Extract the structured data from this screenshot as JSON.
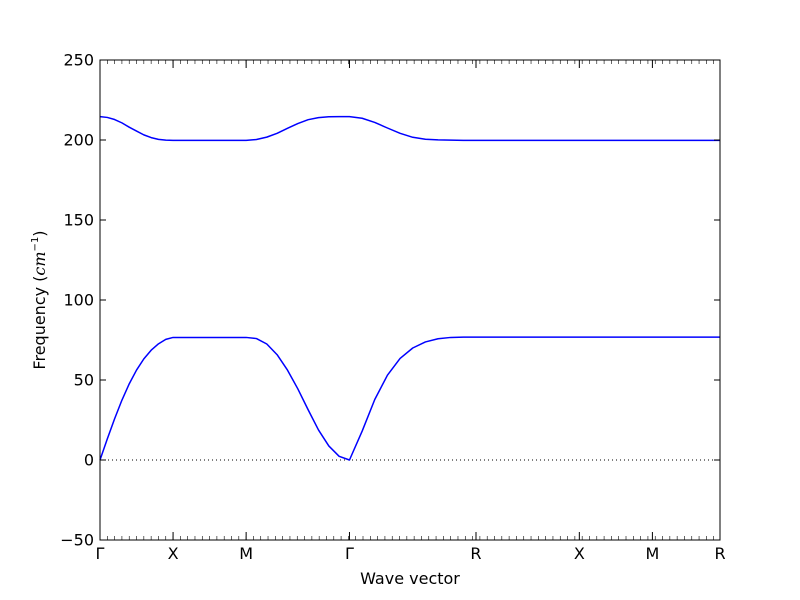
{
  "chart_data": {
    "type": "line",
    "title": "",
    "xlabel": "Wave vector",
    "ylabel_text": "Frequency (",
    "ylabel_unit_base": "cm",
    "ylabel_unit_exp": "−1",
    "ylabel_close": ")",
    "ylim": [
      -50,
      250
    ],
    "yticks": [
      -50,
      0,
      50,
      100,
      150,
      200,
      250
    ],
    "ytick_labels": [
      "−50",
      "0",
      "50",
      "100",
      "150",
      "200",
      "250"
    ],
    "xlim": [
      0,
      6.0
    ],
    "xticks": [
      {
        "pos": 0.0,
        "label": "Γ"
      },
      {
        "pos": 0.7071,
        "label": "X"
      },
      {
        "pos": 1.4142,
        "label": "M"
      },
      {
        "pos": 2.4142,
        "label": "Γ"
      },
      {
        "pos": 3.6387,
        "label": "R"
      },
      {
        "pos": 4.6387,
        "label": "X"
      },
      {
        "pos": 5.3458,
        "label": "M"
      },
      {
        "pos": 6.0,
        "label": "R"
      }
    ],
    "minor_tick_step": 0.0707,
    "zero_line": {
      "y": 0,
      "style": "dotted"
    },
    "series": [
      {
        "color": "#0000ff",
        "x": [
          0.0,
          0.0707,
          0.1414,
          0.2121,
          0.2828,
          0.3536,
          0.4243,
          0.495,
          0.5657,
          0.6364,
          0.7071,
          0.9428,
          1.1785,
          1.4142,
          1.5142,
          1.6142,
          1.7142,
          1.8142,
          1.9142,
          2.0142,
          2.1142,
          2.2142,
          2.3142,
          2.4142,
          2.5367,
          2.6591,
          2.7816,
          2.904,
          3.0265,
          3.1489,
          3.2714,
          3.3938,
          3.5163,
          3.6387,
          4.6387,
          5.3458,
          6.0
        ],
        "y": [
          0,
          13.2,
          25.8,
          37.4,
          47.6,
          56.2,
          63.2,
          68.6,
          72.6,
          75.4,
          76.6,
          76.6,
          76.6,
          76.6,
          75.9,
          72.5,
          65.8,
          56.2,
          44.5,
          31.4,
          18.8,
          8.8,
          2.3,
          0,
          18.0,
          37.8,
          53.0,
          63.5,
          70.0,
          73.8,
          75.8,
          76.6,
          76.8,
          76.8,
          76.8,
          76.8,
          76.8
        ]
      },
      {
        "color": "#0000ff",
        "x": [
          0.0,
          0.0707,
          0.1414,
          0.2121,
          0.2828,
          0.3536,
          0.4243,
          0.495,
          0.5657,
          0.6364,
          0.7071,
          0.9428,
          1.1785,
          1.4142,
          1.5142,
          1.6142,
          1.7142,
          1.8142,
          1.9142,
          2.0142,
          2.1142,
          2.2142,
          2.3142,
          2.4142,
          2.5367,
          2.6591,
          2.7816,
          2.904,
          3.0265,
          3.1489,
          3.2714,
          3.3938,
          3.5163,
          3.6387,
          4.6387,
          5.3458,
          6.0
        ],
        "y": [
          214.6,
          214.1,
          212.8,
          210.7,
          208.0,
          205.6,
          203.2,
          201.5,
          200.4,
          199.9,
          199.8,
          199.8,
          199.8,
          199.8,
          200.3,
          201.8,
          204.2,
          207.3,
          210.3,
          212.7,
          214.0,
          214.5,
          214.6,
          214.6,
          213.6,
          211.0,
          207.5,
          204.2,
          201.7,
          200.5,
          200.1,
          199.9,
          199.8,
          199.8,
          199.8,
          199.8,
          199.8
        ]
      }
    ]
  }
}
